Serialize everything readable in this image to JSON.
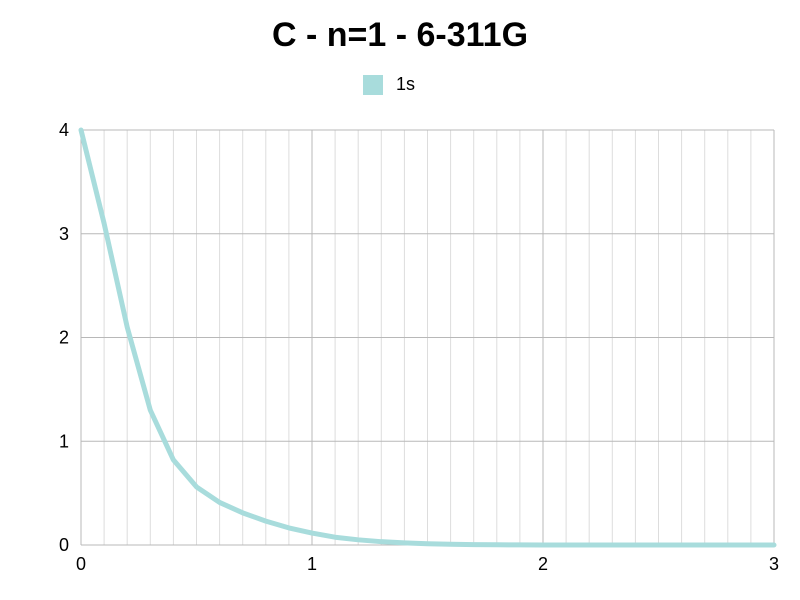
{
  "chart_data": {
    "type": "line",
    "title": "C - n=1 - 6-311G",
    "xlabel": "",
    "ylabel": "",
    "xlim": [
      0,
      3
    ],
    "ylim": [
      0,
      4
    ],
    "x_ticks": [
      "0",
      "1",
      "2",
      "3"
    ],
    "y_ticks": [
      "0",
      "1",
      "2",
      "3",
      "4"
    ],
    "x_minor_step": 0.1,
    "grid": true,
    "legend_position": "top-center",
    "series": [
      {
        "name": "1s",
        "color": "#a8dcdc",
        "x": [
          0,
          0.1,
          0.2,
          0.3,
          0.4,
          0.5,
          0.6,
          0.7,
          0.8,
          0.9,
          1.0,
          1.1,
          1.2,
          1.3,
          1.4,
          1.5,
          1.6,
          1.7,
          1.8,
          1.9,
          2.0,
          2.1,
          2.2,
          2.3,
          2.4,
          2.5,
          2.6,
          2.7,
          2.8,
          2.9,
          3.0
        ],
        "y": [
          4.0,
          3.1,
          2.1,
          1.3,
          0.82,
          0.56,
          0.41,
          0.31,
          0.23,
          0.165,
          0.115,
          0.075,
          0.05,
          0.032,
          0.02,
          0.012,
          0.007,
          0.004,
          0.002,
          0.001,
          0.0006,
          0.0003,
          0.0002,
          0.0001,
          0,
          0,
          0,
          0,
          0,
          0,
          0
        ]
      }
    ]
  }
}
